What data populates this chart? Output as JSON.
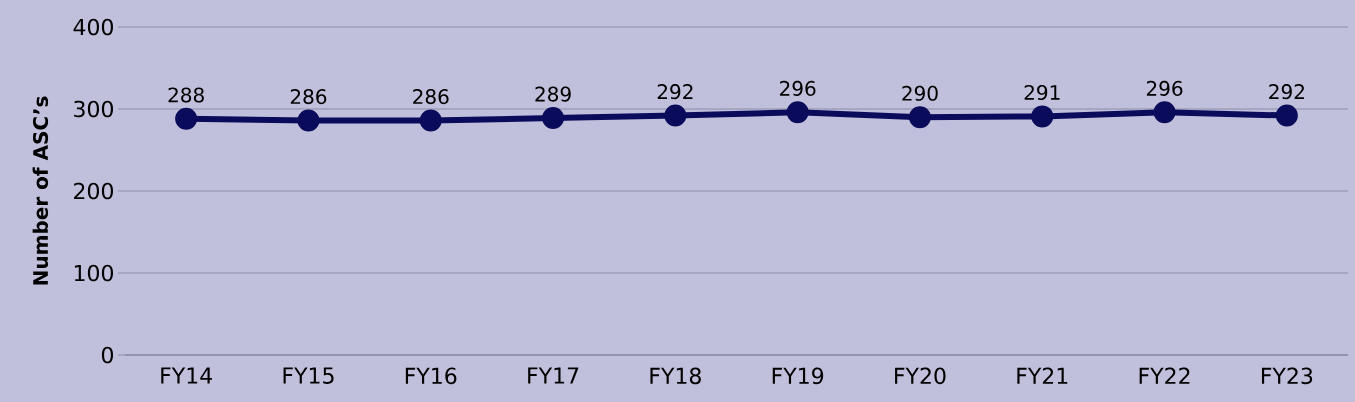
{
  "chart_data": {
    "type": "line",
    "ylabel": "Number of ASC’s",
    "categories": [
      "FY14",
      "FY15",
      "FY16",
      "FY17",
      "FY18",
      "FY19",
      "FY20",
      "FY21",
      "FY22",
      "FY23"
    ],
    "series": [
      {
        "color": "#0b0b5c",
        "values": [
          288,
          286,
          286,
          289,
          292,
          296,
          290,
          291,
          296,
          292
        ]
      }
    ],
    "ylim": [
      0,
      400
    ],
    "yticks": [
      0,
      100,
      200,
      300,
      400
    ],
    "grid": "y",
    "marker": "circle",
    "line_style": "solid",
    "data_labels": true
  }
}
